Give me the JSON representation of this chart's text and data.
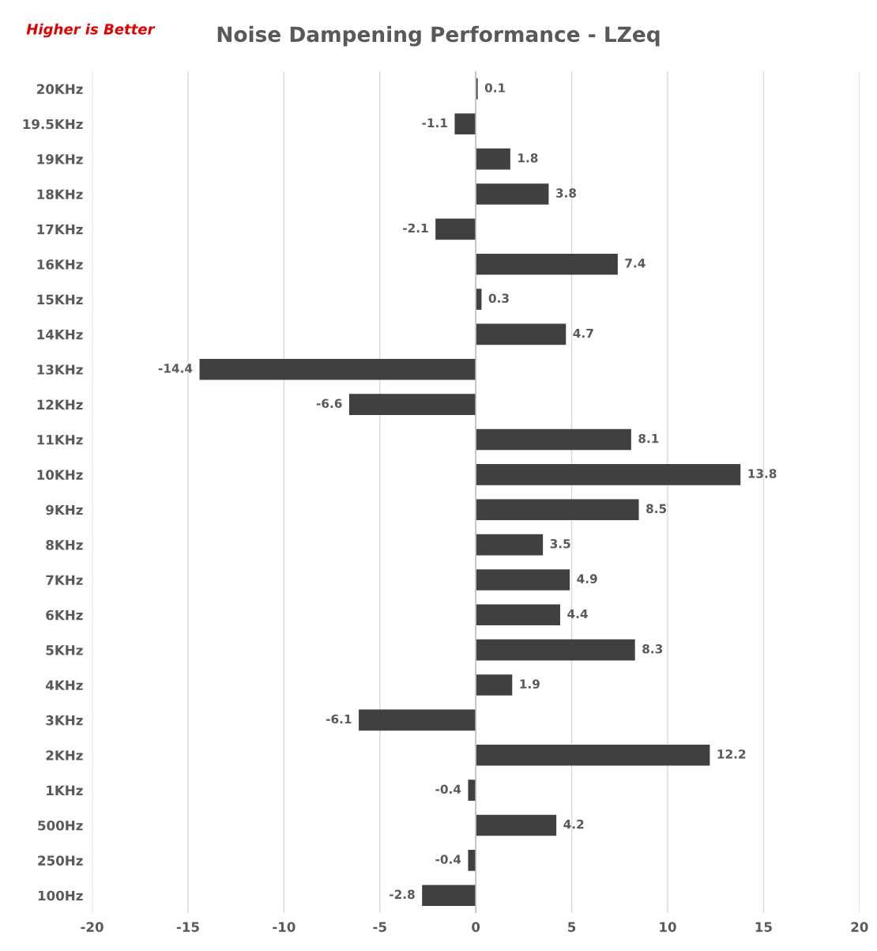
{
  "chart_data": {
    "type": "bar",
    "orientation": "horizontal",
    "title": "Noise Dampening Performance - LZeq",
    "annotations": [
      "Higher is Better"
    ],
    "categories": [
      "20KHz",
      "19.5KHz",
      "19KHz",
      "18KHz",
      "17KHz",
      "16KHz",
      "15KHz",
      "14KHz",
      "13KHz",
      "12KHz",
      "11KHz",
      "10KHz",
      "9KHz",
      "8KHz",
      "7KHz",
      "6KHz",
      "5KHz",
      "4KHz",
      "3KHz",
      "2KHz",
      "1KHz",
      "500Hz",
      "250Hz",
      "100Hz"
    ],
    "values": [
      0.1,
      -1.1,
      1.8,
      3.8,
      -2.1,
      7.4,
      0.3,
      4.7,
      -14.4,
      -6.6,
      8.1,
      13.8,
      8.5,
      3.5,
      4.9,
      4.4,
      8.3,
      1.9,
      -6.1,
      12.2,
      -0.4,
      4.2,
      -0.4,
      -2.8
    ],
    "color": "#404040",
    "xlim": [
      -20,
      20
    ],
    "xticks": [
      -20,
      -15,
      -10,
      -5,
      0,
      5,
      10,
      15,
      20
    ],
    "grid": "x",
    "data_labels": true,
    "legend": false
  }
}
